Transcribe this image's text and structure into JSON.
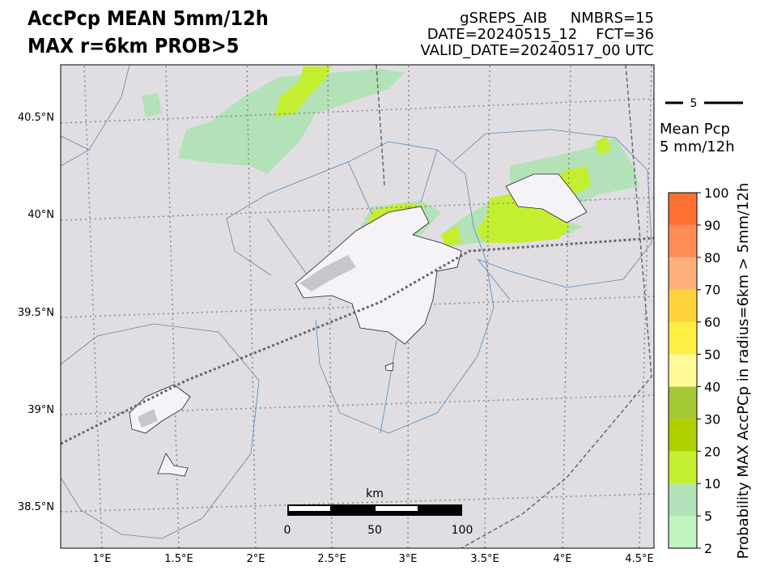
{
  "header": {
    "title_lines": [
      "AccPcp MEAN 5mm/12h",
      "MAX r=6km PROB>5"
    ],
    "info_lines": [
      "gSREPS_AIB     NMBRS=15",
      "DATE=20240515_12    FCT=36",
      "VALID_DATE=20240517_00 UTC"
    ]
  },
  "map": {
    "lat_labels": [
      "40.5°N",
      "40°N",
      "39.5°N",
      "39°N",
      "38.5°N"
    ],
    "lon_labels": [
      "1°E",
      "1.5°E",
      "2°E",
      "2.5°E",
      "3°E",
      "3.5°E",
      "4°E",
      "4.5°E"
    ],
    "scale_bar": {
      "unit": "km",
      "labels": [
        "0",
        "50",
        "100"
      ]
    }
  },
  "legend": {
    "contour_label": "5",
    "title_lines": [
      "Mean Pcp",
      "5 mm/12h"
    ]
  },
  "colorbar": {
    "label": "Probability MAX AccPCp in radius=6km > 5mm/12h",
    "ticks": [
      2,
      5,
      10,
      20,
      30,
      40,
      50,
      60,
      70,
      80,
      90,
      100
    ],
    "colors": [
      "#c0f5c0",
      "#b3e2b8",
      "#c4ee30",
      "#b0d000",
      "#a3c832",
      "#fff99a",
      "#ffee44",
      "#ffd23c",
      "#ffb07a",
      "#ff8c55",
      "#ff7033"
    ]
  }
}
